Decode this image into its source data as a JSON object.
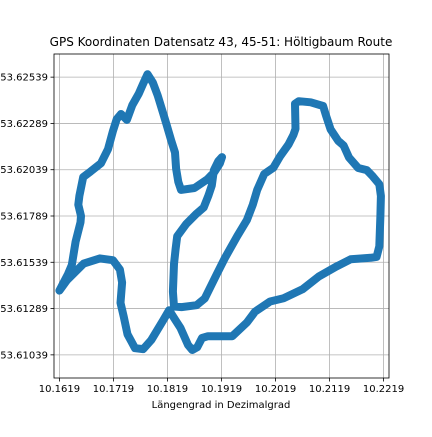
{
  "chart_data": {
    "type": "line",
    "title": "GPS Koordinaten Datensatz 43, 45-51: Höltigbaum Route",
    "xlabel": "Längengrad in Dezimalgrad",
    "ylabel": "",
    "xlim": [
      10.1609,
      10.2229
    ],
    "ylim": [
      53.60914,
      53.62664
    ],
    "grid": true,
    "x_ticks": [
      10.1619,
      10.1719,
      10.1819,
      10.1919,
      10.2019,
      10.2119,
      10.2219
    ],
    "x_tick_labels": [
      "10.1619",
      "10.1719",
      "10.1819",
      "10.1919",
      "10.2019",
      "10.2119",
      "10.2219"
    ],
    "y_ticks": [
      53.61039,
      53.61289,
      53.61539,
      53.61789,
      53.62039,
      53.62289,
      53.62539
    ],
    "y_tick_labels": [
      "53.61039",
      "53.61289",
      "53.61539",
      "53.61789",
      "53.62039",
      "53.62289",
      "53.62539"
    ],
    "series": [
      {
        "color": "#1f77b4",
        "points": [
          [
            10.1619,
            53.61386
          ],
          [
            10.1633,
            53.61442
          ],
          [
            10.1664,
            53.61532
          ],
          [
            10.1694,
            53.6156
          ],
          [
            10.1718,
            53.6155
          ],
          [
            10.1731,
            53.615
          ],
          [
            10.1735,
            53.6143
          ],
          [
            10.1732,
            53.6132
          ],
          [
            10.1738,
            53.61246
          ],
          [
            10.1745,
            53.6115
          ],
          [
            10.1759,
            53.61075
          ],
          [
            10.1774,
            53.6107
          ],
          [
            10.1789,
            53.61119
          ],
          [
            10.1811,
            53.61225
          ],
          [
            10.1822,
            53.6128
          ],
          [
            10.1834,
            53.61225
          ],
          [
            10.1843,
            53.61185
          ],
          [
            10.1857,
            53.61093
          ],
          [
            10.1865,
            53.61065
          ],
          [
            10.1874,
            53.6108
          ],
          [
            10.1883,
            53.6113
          ],
          [
            10.1894,
            53.6114
          ],
          [
            10.1912,
            53.61139
          ],
          [
            10.1939,
            53.6114
          ],
          [
            10.1966,
            53.61214
          ],
          [
            10.1981,
            53.61272
          ],
          [
            10.2009,
            53.61327
          ],
          [
            10.2034,
            53.61345
          ],
          [
            10.2069,
            53.61393
          ],
          [
            10.2099,
            53.61462
          ],
          [
            10.2132,
            53.61517
          ],
          [
            10.2158,
            53.61555
          ],
          [
            10.218,
            53.6156
          ],
          [
            10.2195,
            53.61563
          ],
          [
            10.2206,
            53.61568
          ],
          [
            10.2211,
            53.61625
          ],
          [
            10.2213,
            53.6179
          ],
          [
            10.2214,
            53.61897
          ],
          [
            10.2211,
            53.61961
          ],
          [
            10.2199,
            53.62003
          ],
          [
            10.2188,
            53.62037
          ],
          [
            10.2172,
            53.62048
          ],
          [
            10.2155,
            53.62105
          ],
          [
            10.2145,
            53.6217
          ],
          [
            10.2135,
            53.62195
          ],
          [
            10.2121,
            53.62257
          ],
          [
            10.2112,
            53.62335
          ],
          [
            10.2107,
            53.62383
          ],
          [
            10.2084,
            53.62403
          ],
          [
            10.2062,
            53.62409
          ],
          [
            10.2055,
            53.62395
          ],
          [
            10.2056,
            53.6226
          ],
          [
            10.2052,
            53.62227
          ],
          [
            10.2043,
            53.62175
          ],
          [
            10.2027,
            53.6211
          ],
          [
            10.2015,
            53.6205
          ],
          [
            10.1998,
            53.62016
          ],
          [
            10.1985,
            53.6193
          ],
          [
            10.1977,
            53.6185
          ],
          [
            10.1966,
            53.61767
          ],
          [
            10.1948,
            53.6168
          ],
          [
            10.1925,
            53.6156
          ],
          [
            10.191,
            53.61473
          ],
          [
            10.1888,
            53.61344
          ],
          [
            10.1873,
            53.61307
          ],
          [
            10.1845,
            53.61297
          ],
          [
            10.1831,
            53.613
          ],
          [
            10.1829,
            53.6138
          ],
          [
            10.1831,
            53.6153
          ],
          [
            10.1834,
            53.6161
          ],
          [
            10.1837,
            53.6168
          ],
          [
            10.1854,
            53.61747
          ],
          [
            10.1873,
            53.61802
          ],
          [
            10.1886,
            53.61835
          ],
          [
            10.1895,
            53.619
          ],
          [
            10.1901,
            53.61954
          ],
          [
            10.1905,
            53.62037
          ],
          [
            10.1913,
            53.62085
          ],
          [
            10.192,
            53.62107
          ],
          [
            10.1916,
            53.62073
          ],
          [
            10.1906,
            53.62027
          ],
          [
            10.1893,
            53.61988
          ],
          [
            10.1869,
            53.6194
          ],
          [
            10.1844,
            53.6193
          ],
          [
            10.1839,
            53.61973
          ],
          [
            10.1835,
            53.62045
          ],
          [
            10.1833,
            53.62132
          ],
          [
            10.1826,
            53.62195
          ],
          [
            10.1818,
            53.62276
          ],
          [
            10.1811,
            53.62345
          ],
          [
            10.1801,
            53.6244
          ],
          [
            10.1792,
            53.62509
          ],
          [
            10.1782,
            53.62555
          ],
          [
            10.1773,
            53.62497
          ],
          [
            10.1766,
            53.6245
          ],
          [
            10.1754,
            53.62388
          ],
          [
            10.1744,
            53.62308
          ],
          [
            10.1733,
            53.6234
          ],
          [
            10.1725,
            53.62312
          ],
          [
            10.1718,
            53.62247
          ],
          [
            10.1709,
            53.6215
          ],
          [
            10.1696,
            53.62074
          ],
          [
            10.1677,
            53.6203
          ],
          [
            10.1663,
            53.61999
          ],
          [
            10.1656,
            53.61898
          ],
          [
            10.1654,
            53.6185
          ],
          [
            10.1659,
            53.61789
          ],
          [
            10.1658,
            53.61755
          ],
          [
            10.1649,
            53.6165
          ],
          [
            10.1642,
            53.61524
          ],
          [
            10.1635,
            53.61475
          ],
          [
            10.1619,
            53.61386
          ]
        ]
      }
    ]
  }
}
